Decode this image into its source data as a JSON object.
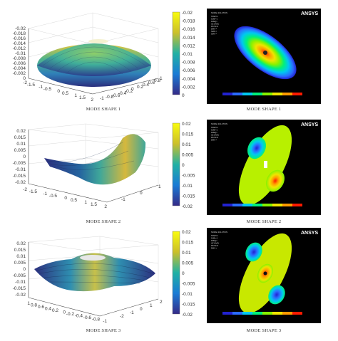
{
  "rows": [
    {
      "plot_caption": "MODE SHAPE 1",
      "ansys_caption": "MODE SHAPE 1",
      "z_ticks": [
        "-0.02",
        "-0.018",
        "-0.016",
        "-0.014",
        "-0.012",
        "-0.01",
        "-0.008",
        "-0.006",
        "-0.004",
        "-0.002",
        "0"
      ],
      "x_ticks": [
        "-2",
        "-1.5",
        "-1",
        "-0.5",
        "0",
        "0.5",
        "1",
        "1.5",
        "2"
      ],
      "y_ticks": [
        "-1",
        "-0.8",
        "-0.6",
        "-0.4",
        "-0.2",
        "0",
        "0.2",
        "0.4",
        "0.6",
        "0.8",
        "1"
      ],
      "colorbar_ticks": [
        "-0.02",
        "-0.018",
        "-0.016",
        "-0.014",
        "-0.012",
        "-0.01",
        "-0.008",
        "-0.006",
        "-0.004",
        "-0.002",
        "0"
      ]
    },
    {
      "plot_caption": "MODE SHAPE 2",
      "ansys_caption": "MODE SHAPE 2",
      "z_ticks": [
        "0.02",
        "0.015",
        "0.01",
        "0.005",
        "0",
        "-0.005",
        "-0.01",
        "-0.015",
        "-0.02"
      ],
      "x_ticks": [
        "-2",
        "-1.5",
        "-1",
        "-0.5",
        "0",
        "0.5",
        "1",
        "1.5",
        "2"
      ],
      "y_ticks": [
        "-1",
        "0",
        "1"
      ],
      "colorbar_ticks": [
        "0.02",
        "0.015",
        "0.01",
        "0.005",
        "0",
        "-0.005",
        "-0.01",
        "-0.015",
        "-0.02"
      ]
    },
    {
      "plot_caption": "MODE SHAPE 3",
      "ansys_caption": "MODE SHAPE 3",
      "z_ticks": [
        "0.02",
        "0.015",
        "0.01",
        "0.005",
        "0",
        "-0.005",
        "-0.01",
        "-0.015",
        "-0.02"
      ],
      "x_ticks": [
        "1",
        "0.8",
        "0.6",
        "0.4",
        "0.2",
        "0",
        "-0.2",
        "-0.4",
        "-0.6",
        "-0.8",
        "-1"
      ],
      "y_ticks": [
        "-2",
        "-1",
        "0",
        "1",
        "2"
      ],
      "colorbar_ticks": [
        "0.02",
        "0.015",
        "0.01",
        "0.005",
        "0",
        "-0.005",
        "-0.01",
        "-0.015",
        "-0.02"
      ]
    }
  ],
  "ansys": {
    "logo": "ANSYS",
    "header": "NODAL SOLUTION",
    "info_lines": [
      "STEP=1",
      "SUB =1",
      "FREQ=",
      "UZ (AVG)",
      "RSYS=0",
      "DMX =",
      "SMN =",
      "SMX ="
    ]
  },
  "colors": {
    "parula_low": "#352a87",
    "parula_mid": "#21b1a4",
    "parula_high": "#f9fb0e",
    "ansys_blue": "#0000ff",
    "ansys_red": "#ff0000"
  }
}
